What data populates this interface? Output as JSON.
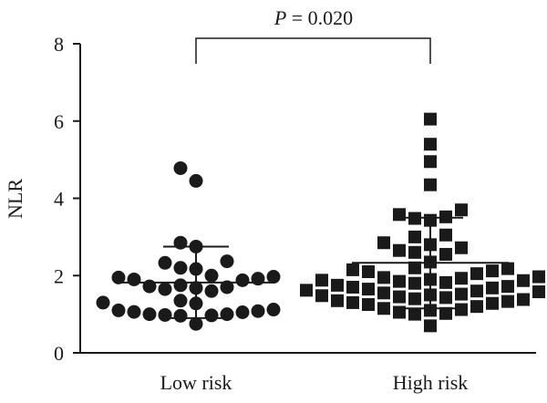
{
  "chart_data": {
    "type": "scatter",
    "ylabel": "NLR",
    "ylim": [
      0,
      8
    ],
    "yticks": [
      "0",
      "2",
      "4",
      "6",
      "8"
    ],
    "categories": [
      "Low risk",
      "High risk"
    ],
    "annotation": {
      "italic": "P",
      "rest": " = 0.020"
    },
    "series": [
      {
        "marker": "circle",
        "mean": 1.82,
        "sd_upper": 2.75,
        "sd_lower": 0.9,
        "values": [
          4.78,
          4.45,
          2.85,
          2.75,
          2.37,
          2.33,
          2.2,
          2.17,
          2.0,
          1.97,
          1.95,
          1.92,
          1.9,
          1.88,
          1.75,
          1.72,
          1.7,
          1.68,
          1.65,
          1.6,
          1.35,
          1.3,
          1.28,
          1.12,
          1.1,
          1.08,
          1.06,
          1.05,
          1.0,
          1.0,
          0.98,
          0.97,
          0.96,
          0.75
        ]
      },
      {
        "marker": "square",
        "mean": 2.33,
        "sd_upper": 3.5,
        "sd_lower": 1.15,
        "values": [
          6.05,
          5.4,
          4.95,
          4.35,
          3.7,
          3.58,
          3.52,
          3.48,
          3.43,
          3.05,
          3.0,
          2.85,
          2.8,
          2.72,
          2.65,
          2.6,
          2.55,
          2.35,
          2.2,
          2.18,
          2.15,
          2.12,
          2.1,
          2.05,
          1.97,
          1.95,
          1.93,
          1.9,
          1.88,
          1.87,
          1.85,
          1.82,
          1.8,
          1.75,
          1.72,
          1.7,
          1.68,
          1.65,
          1.62,
          1.6,
          1.58,
          1.55,
          1.52,
          1.5,
          1.48,
          1.45,
          1.43,
          1.4,
          1.38,
          1.35,
          1.33,
          1.3,
          1.28,
          1.25,
          1.2,
          1.15,
          1.12,
          1.1,
          1.05,
          1.02,
          1.0,
          0.7
        ]
      }
    ]
  }
}
